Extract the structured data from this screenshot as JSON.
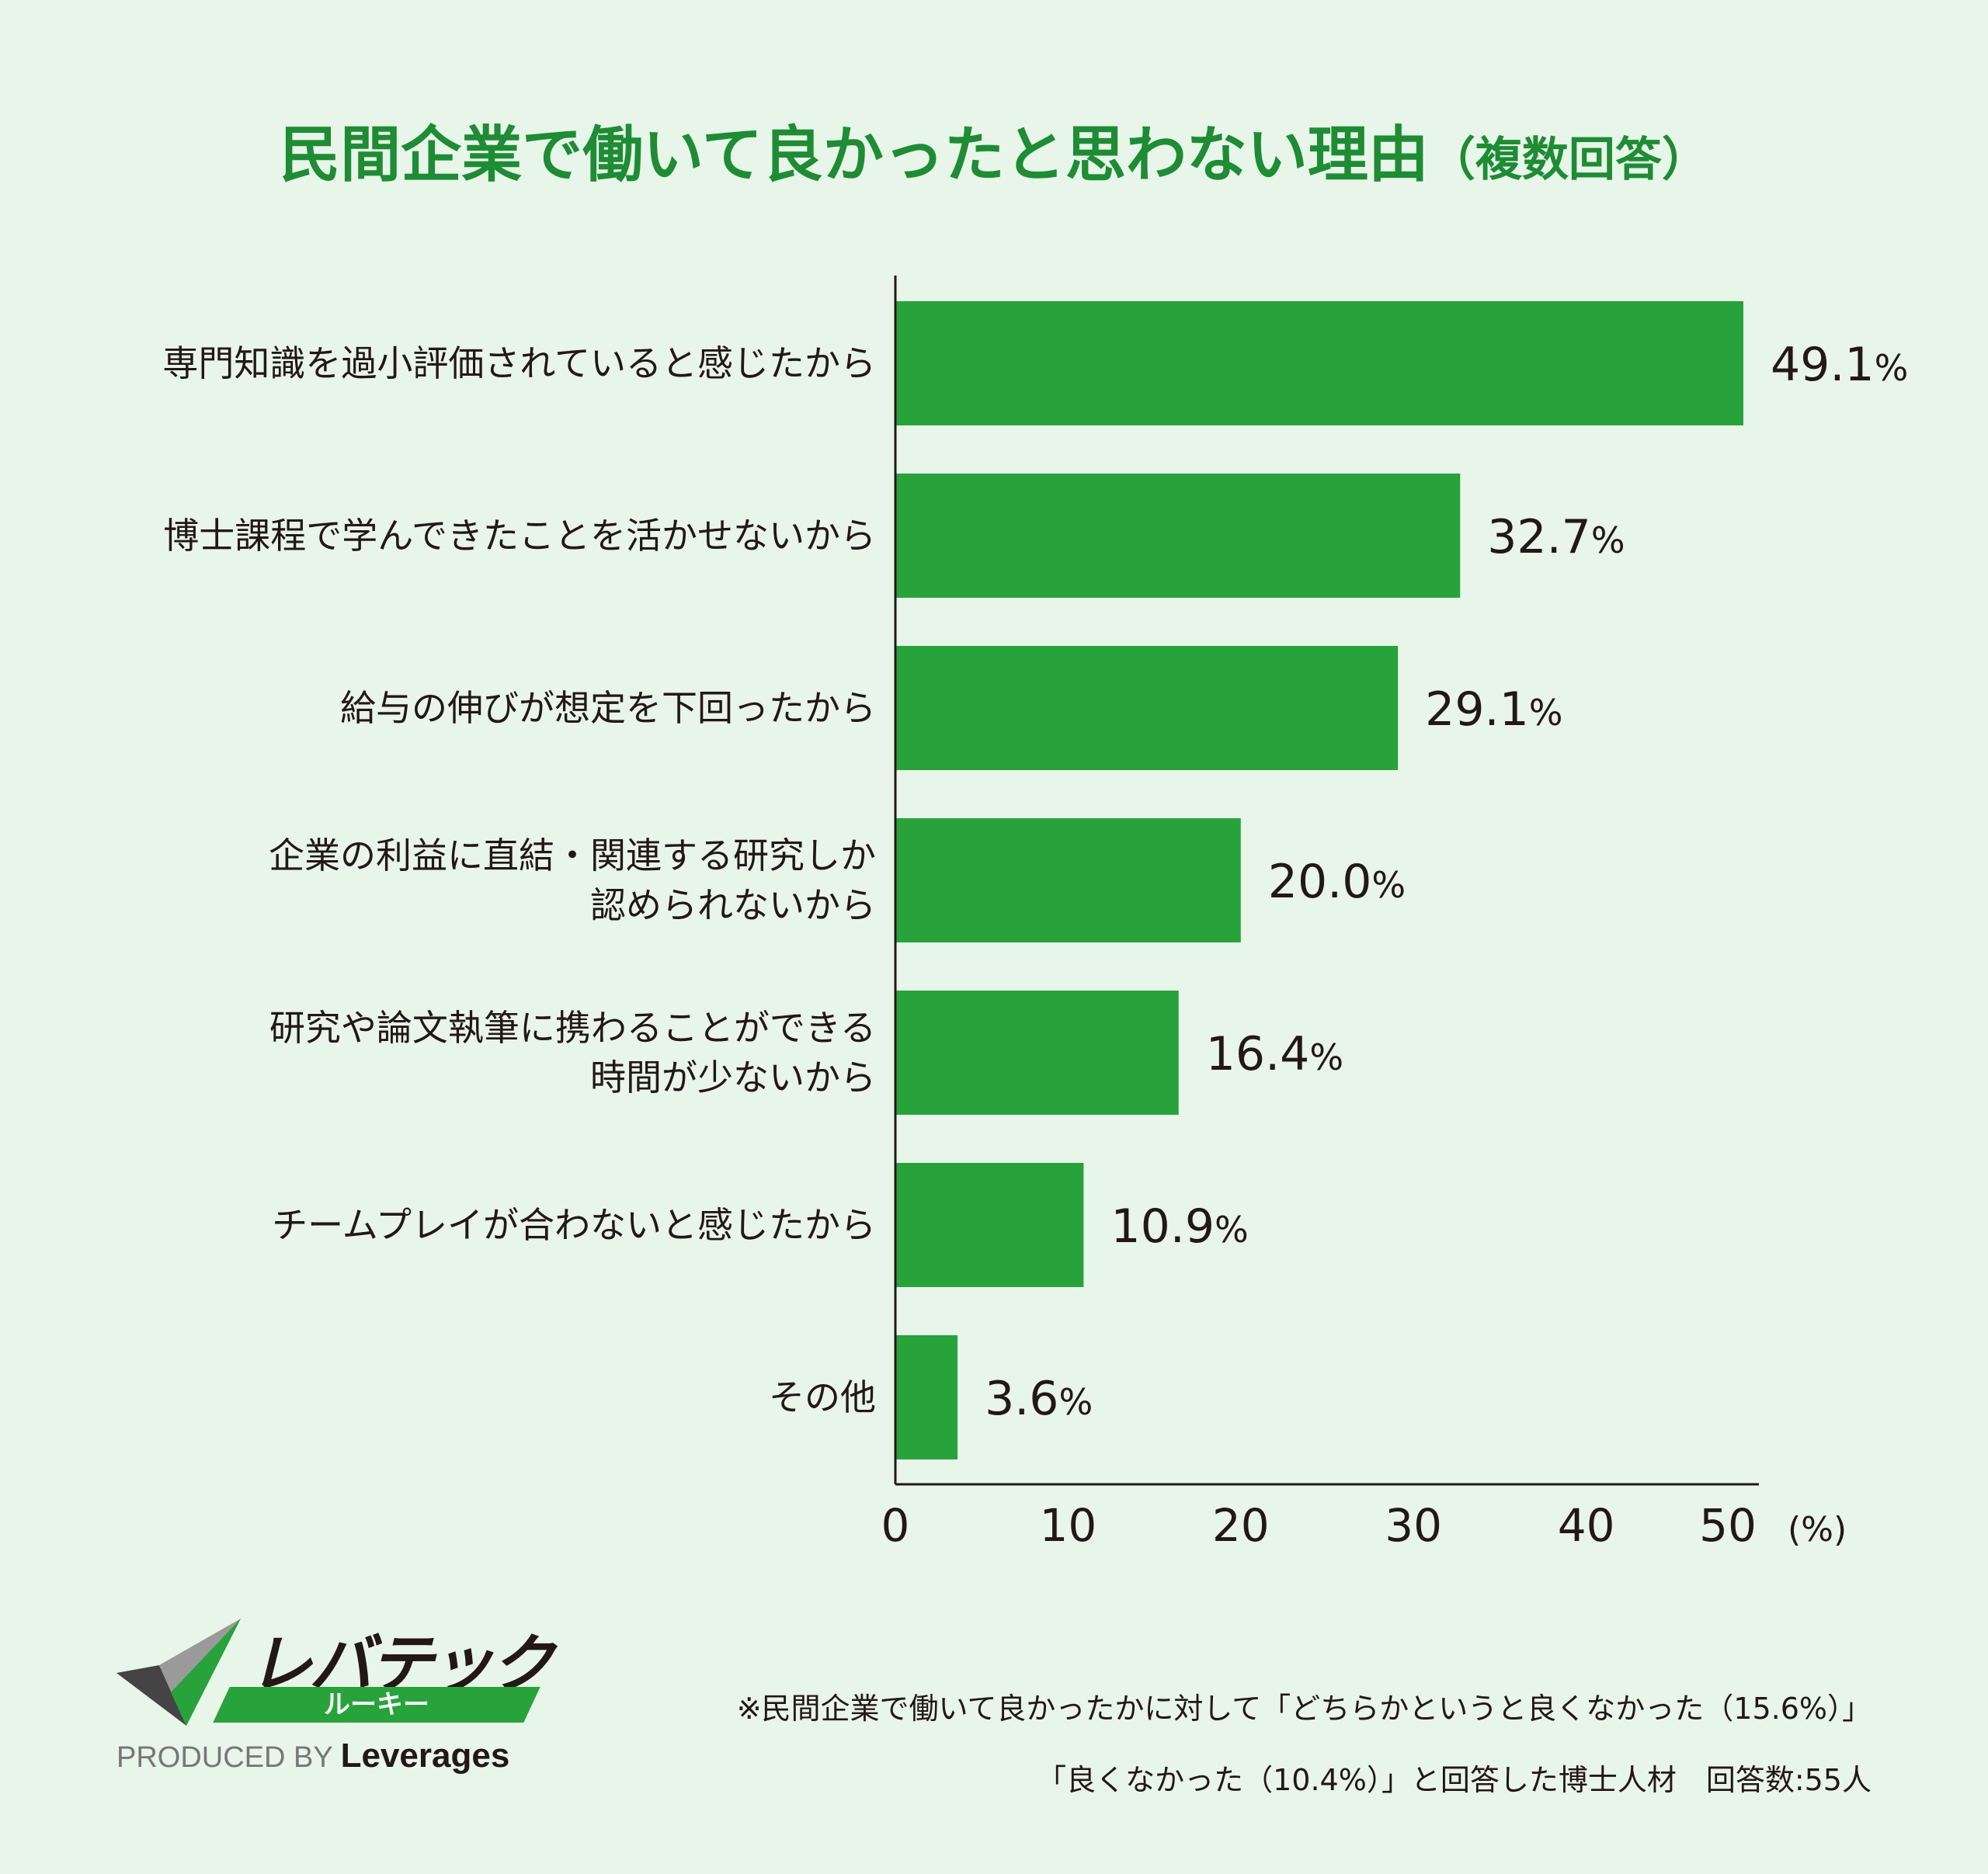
{
  "chart_data": {
    "type": "bar",
    "orientation": "horizontal",
    "title": "民間企業で働いて良かったと思わない理由",
    "title_note": "（複数回答）",
    "categories": [
      [
        "専門知識を過小評価されていると感じたから"
      ],
      [
        "博士課程で学んできたことを活かせないから"
      ],
      [
        "給与の伸びが想定を下回ったから"
      ],
      [
        "企業の利益に直結・関連する研究しか",
        "認められないから"
      ],
      [
        "研究や論文執筆に携わることができる",
        "時間が少ないから"
      ],
      [
        "チームプレイが合わないと感じたから"
      ],
      [
        "その他"
      ]
    ],
    "values": [
      49.1,
      32.7,
      29.1,
      20.0,
      16.4,
      10.9,
      3.6
    ],
    "value_labels": [
      "49.1",
      "32.7",
      "29.1",
      "20.0",
      "16.4",
      "10.9",
      "3.6"
    ],
    "value_unit": "%",
    "xlim": [
      0,
      50
    ],
    "xticks": [
      "0",
      "10",
      "20",
      "30",
      "40",
      "50"
    ],
    "xunit": "(%)",
    "grid": false,
    "bar_color": "#28a33c",
    "title_color": "#1e8c34"
  },
  "footnote": {
    "line1": "※民間企業で働いて良かったかに対して「どちらかというと良くなかった（15.6%）」",
    "line2": "「良くなかった（10.4%）」と回答した博士人材　回答数:55人"
  },
  "logo": {
    "name": "レバテック",
    "tagline": "ルーキー",
    "produced_by": "PRODUCED BY",
    "company": "Leverages"
  }
}
